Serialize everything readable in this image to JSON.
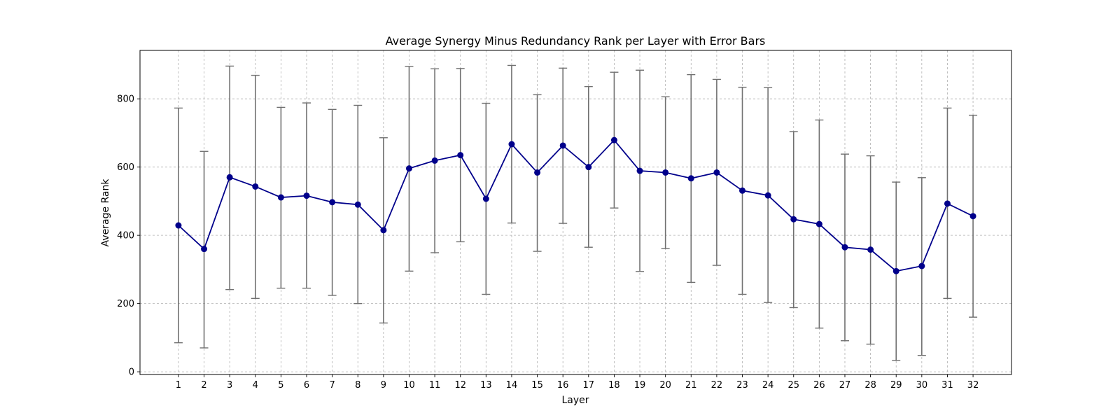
{
  "chart_data": {
    "type": "line",
    "title": "Average Synergy Minus Redundancy Rank per Layer with Error Bars",
    "xlabel": "Layer",
    "ylabel": "Average Rank",
    "x": [
      1,
      2,
      3,
      4,
      5,
      6,
      7,
      8,
      9,
      10,
      11,
      12,
      13,
      14,
      15,
      16,
      17,
      18,
      19,
      20,
      21,
      22,
      23,
      24,
      25,
      26,
      27,
      28,
      29,
      30,
      31,
      32
    ],
    "x_ticks": [
      "1",
      "2",
      "3",
      "4",
      "5",
      "6",
      "7",
      "8",
      "9",
      "10",
      "11",
      "12",
      "13",
      "14",
      "15",
      "16",
      "17",
      "18",
      "19",
      "20",
      "21",
      "22",
      "23",
      "24",
      "25",
      "26",
      "27",
      "28",
      "29",
      "30",
      "31",
      "32"
    ],
    "y_ticks": [
      "0",
      "200",
      "400",
      "600",
      "800"
    ],
    "xlim": [
      -0.5,
      33.5
    ],
    "ylim": [
      -8,
      942
    ],
    "grid": true,
    "series": [
      {
        "values": [
          429,
          360,
          570,
          543,
          511,
          516,
          497,
          490,
          415,
          596,
          619,
          635,
          507,
          667,
          584,
          663,
          600,
          679,
          589,
          584,
          567,
          584,
          531,
          517,
          447,
          433,
          365,
          358,
          295,
          310,
          493,
          456
        ],
        "err_low": [
          85,
          70,
          241,
          215,
          245,
          245,
          224,
          200,
          143,
          295,
          349,
          381,
          227,
          436,
          353,
          435,
          365,
          480,
          294,
          361,
          262,
          312,
          227,
          203,
          188,
          128,
          91,
          81,
          33,
          48,
          215,
          160
        ],
        "err_high": [
          773,
          646,
          896,
          869,
          775,
          788,
          769,
          781,
          686,
          895,
          888,
          889,
          787,
          898,
          812,
          890,
          836,
          878,
          884,
          806,
          871,
          857,
          834,
          833,
          704,
          738,
          638,
          633,
          556,
          569,
          773,
          752
        ]
      }
    ],
    "colors": {
      "line": "#00008b",
      "marker": "#00008b",
      "error_bar": "#707070"
    }
  }
}
